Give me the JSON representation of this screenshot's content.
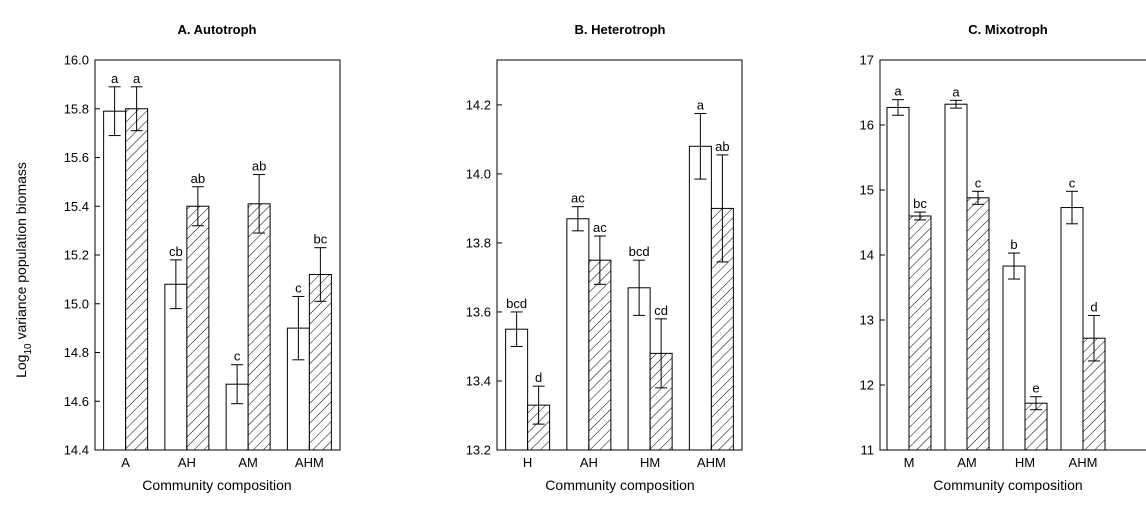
{
  "figure": {
    "ylabel_main": "Log",
    "ylabel_sub": "10",
    "ylabel_rest": " variance population biomass"
  },
  "chart_data": [
    {
      "type": "bar",
      "title": "A. Autotroph",
      "xlabel": "Community composition",
      "ylabel": "Log10 variance population biomass",
      "categories": [
        "A",
        "AH",
        "AM",
        "AHM"
      ],
      "ylim": [
        14.4,
        16.0
      ],
      "yticks": [
        "14.4",
        "14.6",
        "14.8",
        "15.0",
        "15.2",
        "15.4",
        "15.6",
        "15.8",
        "16.0"
      ],
      "grid": false,
      "series": [
        {
          "style": "open",
          "values": [
            15.79,
            15.08,
            14.67,
            14.9
          ],
          "errors": [
            0.1,
            0.1,
            0.08,
            0.13
          ],
          "letters": [
            "a",
            "cb",
            "c",
            "c"
          ]
        },
        {
          "style": "hatched",
          "values": [
            15.8,
            15.4,
            15.41,
            15.12
          ],
          "errors": [
            0.09,
            0.08,
            0.12,
            0.11
          ],
          "letters": [
            "a",
            "ab",
            "ab",
            "bc"
          ]
        }
      ]
    },
    {
      "type": "bar",
      "title": "B. Heterotroph",
      "xlabel": "Community composition",
      "categories": [
        "H",
        "AH",
        "HM",
        "AHM"
      ],
      "ylim": [
        13.2,
        14.33
      ],
      "yticks": [
        "13.2",
        "13.4",
        "13.6",
        "13.8",
        "14.0",
        "14.2"
      ],
      "grid": false,
      "series": [
        {
          "style": "open",
          "values": [
            13.55,
            13.87,
            13.67,
            14.08
          ],
          "errors": [
            0.05,
            0.035,
            0.08,
            0.095
          ],
          "letters": [
            "bcd",
            "ac",
            "bcd",
            "a"
          ]
        },
        {
          "style": "hatched",
          "values": [
            13.33,
            13.75,
            13.48,
            13.9
          ],
          "errors": [
            0.055,
            0.07,
            0.1,
            0.155
          ],
          "letters": [
            "d",
            "ac",
            "cd",
            "ab"
          ]
        }
      ]
    },
    {
      "type": "bar",
      "title": "C. Mixotroph",
      "xlabel": "Community composition",
      "categories": [
        "M",
        "AM",
        "HM",
        "AHM"
      ],
      "ylim": [
        11,
        17
      ],
      "yticks": [
        "11",
        "12",
        "13",
        "14",
        "15",
        "16",
        "17"
      ],
      "grid": false,
      "series": [
        {
          "style": "open",
          "values": [
            16.27,
            16.32,
            13.83,
            14.73
          ],
          "errors": [
            0.12,
            0.06,
            0.2,
            0.25
          ],
          "letters": [
            "a",
            "a",
            "b",
            "c"
          ]
        },
        {
          "style": "hatched",
          "values": [
            14.6,
            14.88,
            11.72,
            12.72
          ],
          "errors": [
            0.06,
            0.1,
            0.1,
            0.35
          ],
          "letters": [
            "bc",
            "c",
            "e",
            "d"
          ]
        }
      ]
    }
  ]
}
